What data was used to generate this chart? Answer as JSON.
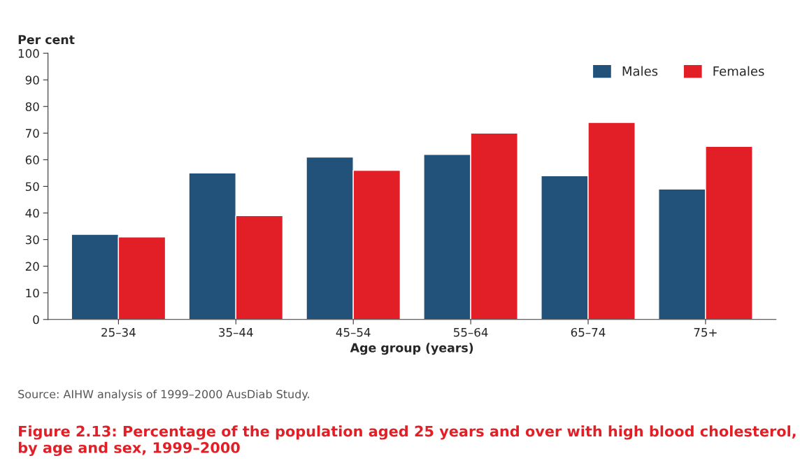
{
  "chart_data": {
    "type": "bar",
    "title": "Figure 2.13: Percentage of the population aged 25 years and over with high blood cholesterol, by age and sex, 1999–2000",
    "xlabel": "Age group (years)",
    "ylabel": "Per cent",
    "categories": [
      "25–34",
      "35–44",
      "45–54",
      "55–64",
      "65–74",
      "75+"
    ],
    "series": [
      {
        "name": "Males",
        "color": "#22527a",
        "values": [
          32,
          55,
          61,
          62,
          54,
          49
        ]
      },
      {
        "name": "Females",
        "color": "#e21f26",
        "values": [
          31,
          39,
          56,
          70,
          74,
          65
        ]
      }
    ],
    "ylim": [
      0,
      100
    ],
    "yticks": [
      0,
      10,
      20,
      30,
      40,
      50,
      60,
      70,
      80,
      90,
      100
    ],
    "grid": false,
    "legend": "top right",
    "annotations": [
      "Source: AIHW analysis of 1999–2000 AusDiab Study."
    ]
  }
}
